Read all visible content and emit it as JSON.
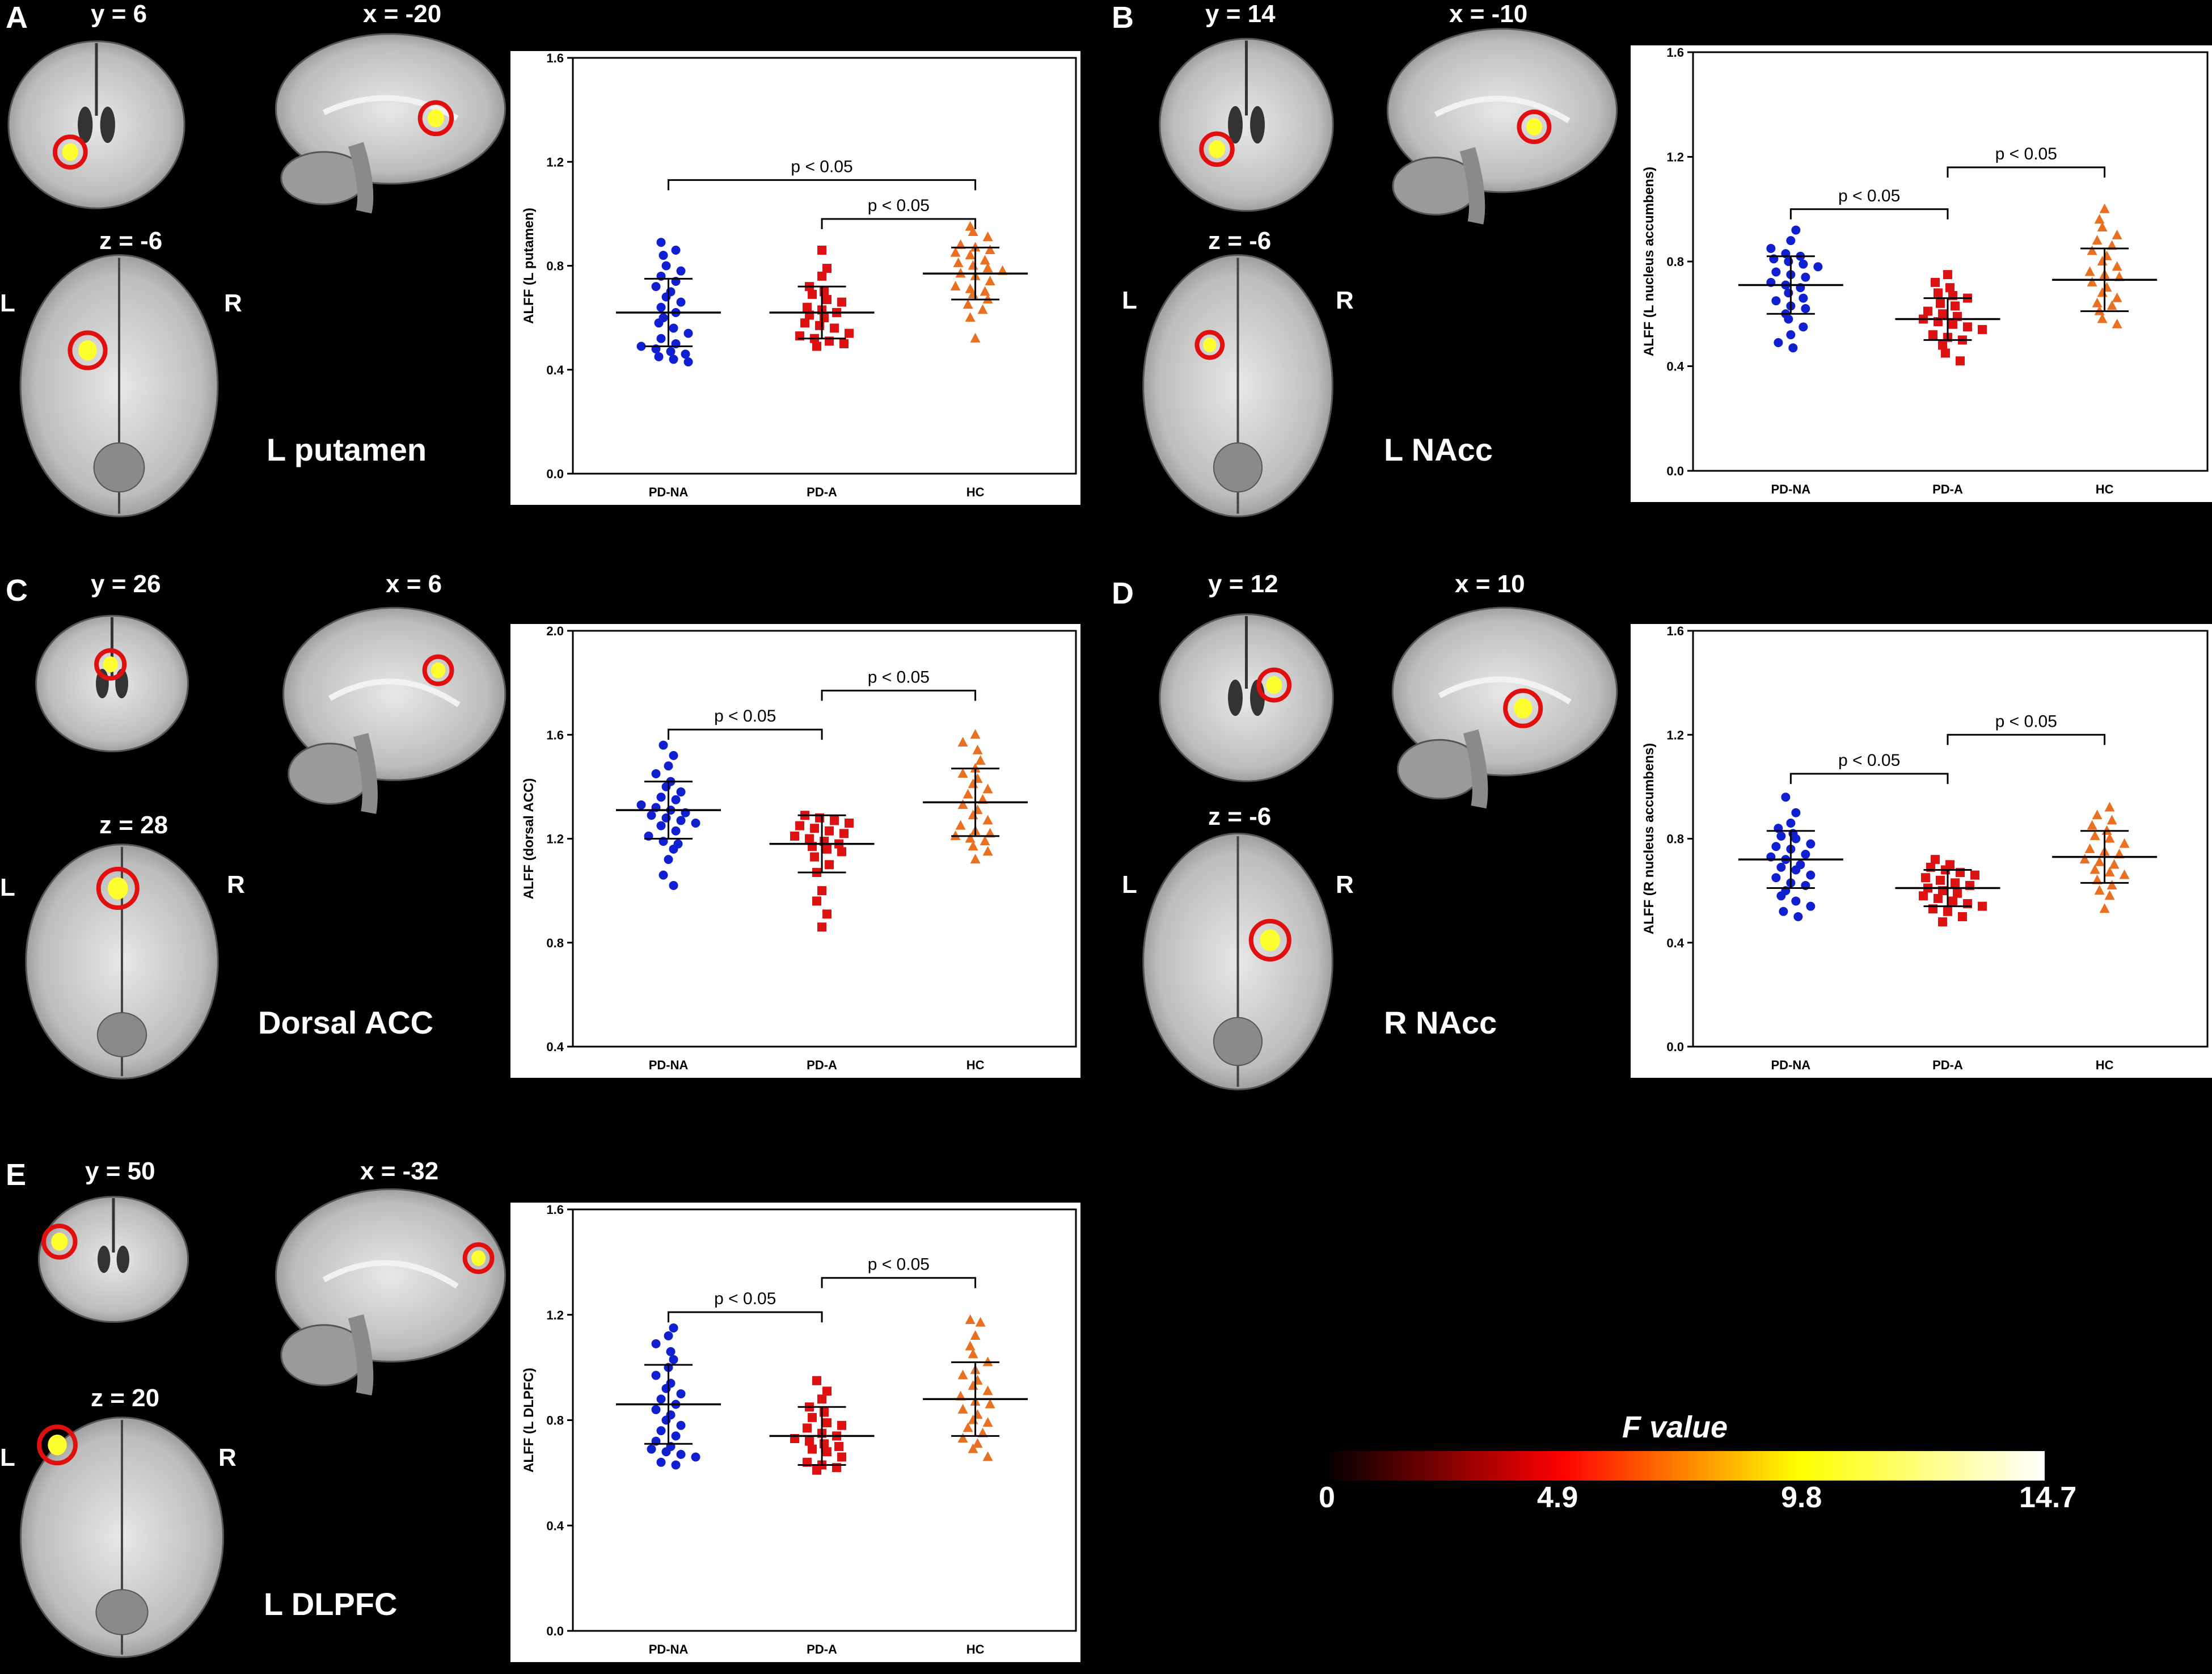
{
  "panels": [
    {
      "letter": "A",
      "coords": {
        "coronal": "y = 6",
        "sagittal": "x = -20",
        "axial": "z = -6"
      },
      "left": "L",
      "right": "R",
      "region": "L putamen",
      "chart": {
        "type": "scatter",
        "ylabel": "ALFF (L putamen)",
        "ylim": [
          0.0,
          1.6
        ],
        "yticks": [
          "0.0",
          "0.4",
          "0.8",
          "1.2",
          "1.6"
        ],
        "categories": [
          "PD-NA",
          "PD-A",
          "HC"
        ],
        "groups": [
          {
            "name": "PD-NA",
            "mean": 0.62,
            "sd": 0.13,
            "values": [
              0.89,
              0.86,
              0.84,
              0.8,
              0.78,
              0.76,
              0.74,
              0.72,
              0.7,
              0.68,
              0.66,
              0.64,
              0.62,
              0.6,
              0.58,
              0.56,
              0.54,
              0.52,
              0.5,
              0.49,
              0.48,
              0.47,
              0.46,
              0.45,
              0.44,
              0.43
            ]
          },
          {
            "name": "PD-A",
            "mean": 0.62,
            "sd": 0.1,
            "values": [
              0.86,
              0.79,
              0.76,
              0.72,
              0.7,
              0.69,
              0.67,
              0.66,
              0.64,
              0.63,
              0.62,
              0.61,
              0.6,
              0.58,
              0.57,
              0.56,
              0.54,
              0.53,
              0.52,
              0.51,
              0.5,
              0.49
            ]
          },
          {
            "name": "HC",
            "mean": 0.77,
            "sd": 0.1,
            "values": [
              0.95,
              0.93,
              0.91,
              0.88,
              0.87,
              0.86,
              0.85,
              0.84,
              0.82,
              0.81,
              0.8,
              0.79,
              0.78,
              0.77,
              0.76,
              0.74,
              0.72,
              0.71,
              0.7,
              0.69,
              0.67,
              0.65,
              0.63,
              0.6,
              0.52
            ]
          }
        ],
        "brackets": [
          {
            "from": 0,
            "to": 2,
            "y": 1.13,
            "label": "p < 0.05"
          },
          {
            "from": 1,
            "to": 2,
            "y": 0.98,
            "label": "p < 0.05"
          }
        ]
      }
    },
    {
      "letter": "B",
      "coords": {
        "coronal": "y = 14",
        "sagittal": "x = -10",
        "axial": "z = -6"
      },
      "left": "L",
      "right": "R",
      "region": "L NAcc",
      "chart": {
        "type": "scatter",
        "ylabel": "ALFF (L nucleus accumbens)",
        "ylim": [
          0.0,
          1.6
        ],
        "yticks": [
          "0.0",
          "0.4",
          "0.8",
          "1.2",
          "1.6"
        ],
        "categories": [
          "PD-NA",
          "PD-A",
          "HC"
        ],
        "groups": [
          {
            "name": "PD-NA",
            "mean": 0.71,
            "sd": 0.11,
            "values": [
              0.92,
              0.88,
              0.85,
              0.83,
              0.82,
              0.81,
              0.8,
              0.79,
              0.78,
              0.76,
              0.75,
              0.74,
              0.72,
              0.71,
              0.7,
              0.68,
              0.66,
              0.65,
              0.63,
              0.62,
              0.6,
              0.58,
              0.55,
              0.52,
              0.49,
              0.47
            ]
          },
          {
            "name": "PD-A",
            "mean": 0.58,
            "sd": 0.08,
            "values": [
              0.75,
              0.72,
              0.7,
              0.68,
              0.67,
              0.66,
              0.64,
              0.63,
              0.61,
              0.6,
              0.59,
              0.58,
              0.57,
              0.56,
              0.55,
              0.54,
              0.52,
              0.51,
              0.5,
              0.48,
              0.45,
              0.42
            ]
          },
          {
            "name": "HC",
            "mean": 0.73,
            "sd": 0.12,
            "values": [
              1.0,
              0.96,
              0.93,
              0.9,
              0.88,
              0.86,
              0.84,
              0.82,
              0.8,
              0.78,
              0.76,
              0.75,
              0.74,
              0.72,
              0.7,
              0.68,
              0.66,
              0.64,
              0.63,
              0.61,
              0.58,
              0.56
            ]
          }
        ],
        "brackets": [
          {
            "from": 0,
            "to": 1,
            "y": 1.0,
            "label": "p < 0.05"
          },
          {
            "from": 1,
            "to": 2,
            "y": 1.16,
            "label": "p < 0.05"
          }
        ]
      }
    },
    {
      "letter": "C",
      "coords": {
        "coronal": "y = 26",
        "sagittal": "x = 6",
        "axial": "z = 28"
      },
      "left": "L",
      "right": "R",
      "region": "Dorsal ACC",
      "chart": {
        "type": "scatter",
        "ylabel": "ALFF (dorsal ACC)",
        "ylim": [
          0.4,
          2.0
        ],
        "yticks": [
          "0.4",
          "0.8",
          "1.2",
          "1.6",
          "2.0"
        ],
        "categories": [
          "PD-NA",
          "PD-A",
          "HC"
        ],
        "groups": [
          {
            "name": "PD-NA",
            "mean": 1.31,
            "sd": 0.11,
            "values": [
              1.56,
              1.52,
              1.48,
              1.45,
              1.42,
              1.4,
              1.38,
              1.36,
              1.35,
              1.33,
              1.32,
              1.31,
              1.3,
              1.29,
              1.28,
              1.27,
              1.26,
              1.25,
              1.23,
              1.21,
              1.19,
              1.18,
              1.16,
              1.12,
              1.06,
              1.02
            ]
          },
          {
            "name": "PD-A",
            "mean": 1.18,
            "sd": 0.11,
            "values": [
              1.29,
              1.28,
              1.27,
              1.26,
              1.25,
              1.24,
              1.23,
              1.22,
              1.21,
              1.2,
              1.19,
              1.18,
              1.17,
              1.16,
              1.15,
              1.13,
              1.1,
              1.07,
              1.0,
              0.96,
              0.91,
              0.86
            ]
          },
          {
            "name": "HC",
            "mean": 1.34,
            "sd": 0.13,
            "values": [
              1.6,
              1.57,
              1.54,
              1.5,
              1.47,
              1.45,
              1.43,
              1.41,
              1.39,
              1.37,
              1.35,
              1.33,
              1.31,
              1.29,
              1.27,
              1.25,
              1.23,
              1.22,
              1.21,
              1.2,
              1.19,
              1.17,
              1.15,
              1.12
            ]
          }
        ],
        "brackets": [
          {
            "from": 0,
            "to": 1,
            "y": 1.62,
            "label": "p < 0.05"
          },
          {
            "from": 1,
            "to": 2,
            "y": 1.77,
            "label": "p < 0.05"
          }
        ]
      }
    },
    {
      "letter": "D",
      "coords": {
        "coronal": "y = 12",
        "sagittal": "x = 10",
        "axial": "z = -6"
      },
      "left": "L",
      "right": "R",
      "region": "R NAcc",
      "chart": {
        "type": "scatter",
        "ylabel": "ALFF (R nucleus accumbens)",
        "ylim": [
          0.0,
          1.6
        ],
        "yticks": [
          "0.0",
          "0.4",
          "0.8",
          "1.2",
          "1.6"
        ],
        "categories": [
          "PD-NA",
          "PD-A",
          "HC"
        ],
        "groups": [
          {
            "name": "PD-NA",
            "mean": 0.72,
            "sd": 0.11,
            "values": [
              0.96,
              0.9,
              0.86,
              0.84,
              0.82,
              0.81,
              0.8,
              0.78,
              0.77,
              0.76,
              0.74,
              0.73,
              0.72,
              0.7,
              0.69,
              0.68,
              0.66,
              0.65,
              0.63,
              0.62,
              0.6,
              0.58,
              0.56,
              0.54,
              0.52,
              0.5
            ]
          },
          {
            "name": "PD-A",
            "mean": 0.61,
            "sd": 0.07,
            "values": [
              0.72,
              0.7,
              0.69,
              0.68,
              0.67,
              0.66,
              0.65,
              0.64,
              0.63,
              0.62,
              0.61,
              0.6,
              0.59,
              0.58,
              0.57,
              0.56,
              0.55,
              0.54,
              0.53,
              0.52,
              0.5,
              0.48
            ]
          },
          {
            "name": "HC",
            "mean": 0.73,
            "sd": 0.1,
            "values": [
              0.92,
              0.89,
              0.87,
              0.85,
              0.83,
              0.81,
              0.8,
              0.78,
              0.76,
              0.75,
              0.74,
              0.72,
              0.71,
              0.7,
              0.68,
              0.67,
              0.66,
              0.64,
              0.62,
              0.6,
              0.58,
              0.53
            ]
          }
        ],
        "brackets": [
          {
            "from": 0,
            "to": 1,
            "y": 1.05,
            "label": "p < 0.05"
          },
          {
            "from": 1,
            "to": 2,
            "y": 1.2,
            "label": "p < 0.05"
          }
        ]
      }
    },
    {
      "letter": "E",
      "coords": {
        "coronal": "y = 50",
        "sagittal": "x = -32",
        "axial": "z = 20"
      },
      "left": "L",
      "right": "R",
      "region": "L DLPFC",
      "chart": {
        "type": "scatter",
        "ylabel": "ALFF (L DLPFC)",
        "ylim": [
          0.0,
          1.6
        ],
        "yticks": [
          "0.0",
          "0.4",
          "0.8",
          "1.2",
          "1.6"
        ],
        "categories": [
          "PD-NA",
          "PD-A",
          "HC"
        ],
        "groups": [
          {
            "name": "PD-NA",
            "mean": 0.86,
            "sd": 0.15,
            "values": [
              1.15,
              1.12,
              1.09,
              1.06,
              1.03,
              1.0,
              0.97,
              0.94,
              0.92,
              0.9,
              0.88,
              0.86,
              0.84,
              0.82,
              0.8,
              0.78,
              0.76,
              0.74,
              0.72,
              0.7,
              0.69,
              0.68,
              0.67,
              0.66,
              0.64,
              0.63
            ]
          },
          {
            "name": "PD-A",
            "mean": 0.74,
            "sd": 0.11,
            "values": [
              0.95,
              0.91,
              0.88,
              0.85,
              0.83,
              0.81,
              0.79,
              0.78,
              0.77,
              0.75,
              0.74,
              0.73,
              0.72,
              0.71,
              0.7,
              0.69,
              0.68,
              0.66,
              0.64,
              0.63,
              0.62,
              0.61
            ]
          },
          {
            "name": "HC",
            "mean": 0.88,
            "sd": 0.14,
            "values": [
              1.18,
              1.17,
              1.12,
              1.08,
              1.05,
              1.02,
              0.99,
              0.97,
              0.95,
              0.93,
              0.91,
              0.89,
              0.87,
              0.86,
              0.84,
              0.82,
              0.8,
              0.79,
              0.77,
              0.75,
              0.73,
              0.71,
              0.69,
              0.66
            ]
          }
        ],
        "brackets": [
          {
            "from": 0,
            "to": 1,
            "y": 1.21,
            "label": "p < 0.05"
          },
          {
            "from": 1,
            "to": 2,
            "y": 1.34,
            "label": "p < 0.05"
          }
        ]
      }
    }
  ],
  "colorbar": {
    "title": "F value",
    "ticks": [
      "0",
      "4.9",
      "9.8",
      "14.7"
    ],
    "colors": [
      "#000000",
      "#ff0000",
      "#ffff00",
      "#ffffff"
    ]
  },
  "group_colors": {
    "PD-NA": "#1020d0",
    "PD-A": "#dd1111",
    "HC": "#e87020"
  },
  "group_markers": {
    "PD-NA": "circle",
    "PD-A": "square",
    "HC": "triangle"
  }
}
